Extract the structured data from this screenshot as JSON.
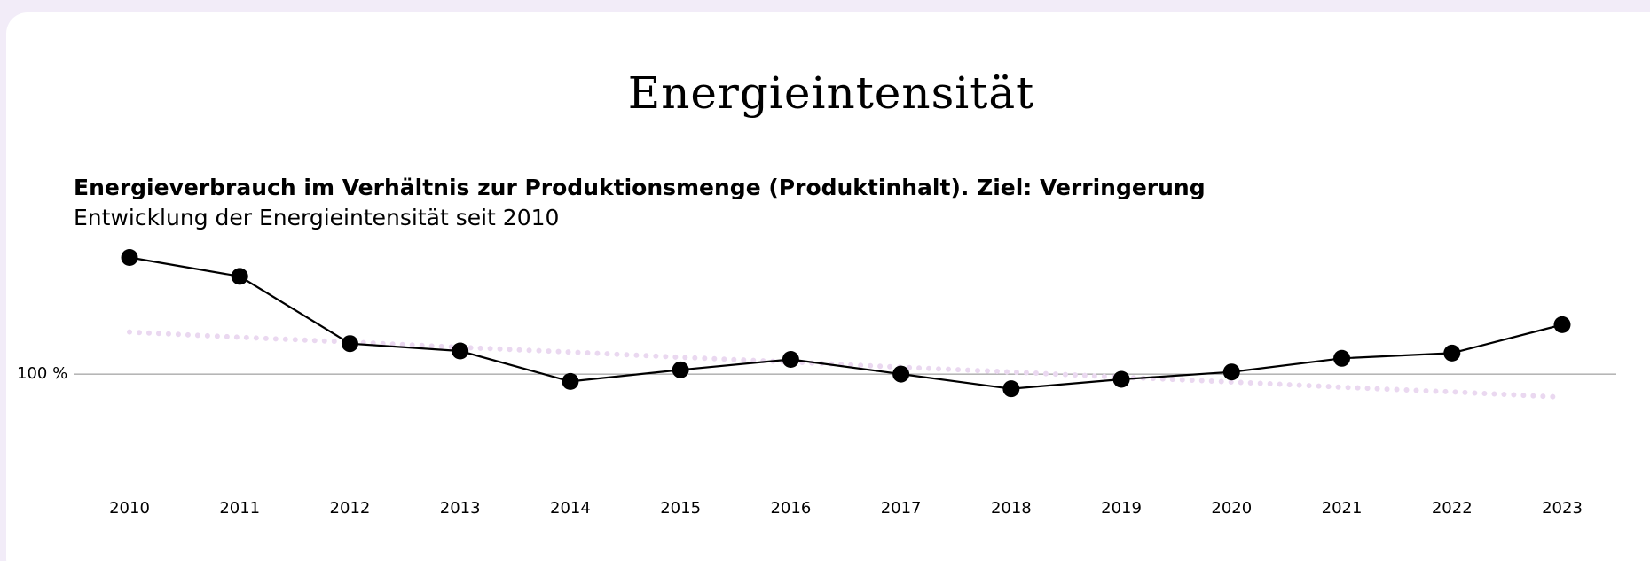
{
  "chart_data": {
    "type": "line",
    "title": "Energieintensität",
    "subtitle": "Energieverbrauch im Verhältnis zur Produktionsmenge (Produktinhalt). Ziel: Verringerung",
    "description": "Entwicklung der Energieintensität seit 2010",
    "categories": [
      "2010",
      "2011",
      "2012",
      "2013",
      "2014",
      "2015",
      "2016",
      "2017",
      "2018",
      "2019",
      "2020",
      "2021",
      "2022",
      "2023"
    ],
    "series": [
      {
        "name": "Energieintensität",
        "color": "#000000",
        "style": "solid",
        "values": [
          122.2,
          118.6,
          105.8,
          104.4,
          98.6,
          100.8,
          102.8,
          100,
          97.2,
          99,
          100.4,
          103,
          104,
          109.4
        ]
      },
      {
        "color": "#ead8f0",
        "style": "dotted",
        "values": [
          108,
          107,
          106.1,
          105.1,
          104.2,
          103.2,
          102.3,
          101.3,
          100.4,
          99.4,
          98.5,
          97.5,
          96.6,
          95.6
        ]
      }
    ],
    "ylim": [
      80,
      126
    ],
    "yticks": [
      {
        "value": 100,
        "label": "100 %"
      }
    ],
    "grid": true
  }
}
